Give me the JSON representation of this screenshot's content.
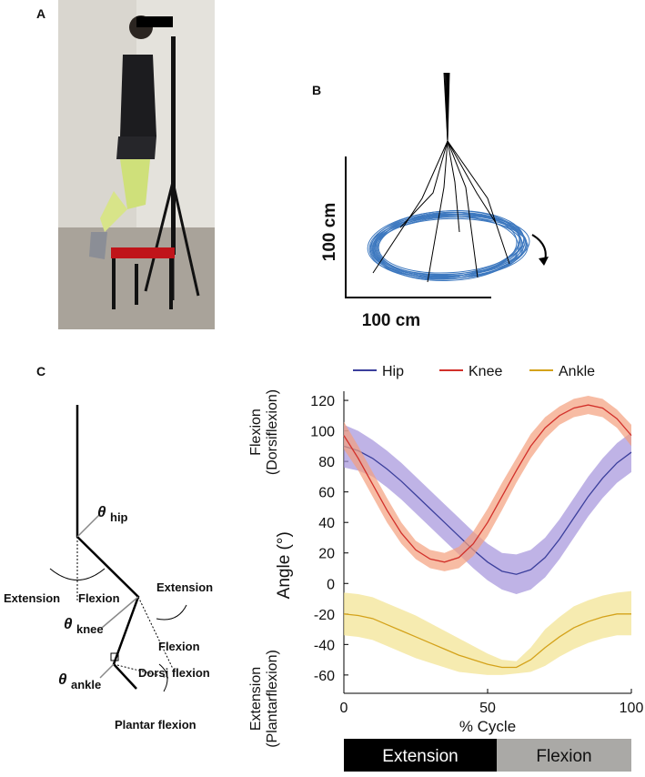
{
  "figure": {
    "panel_labels": [
      "A",
      "B",
      "C"
    ],
    "trajectory": {
      "x_scale": "100 cm",
      "y_scale": "100 cm"
    },
    "diagram": {
      "theta": "θ",
      "joints": [
        "hip",
        "knee",
        "ankle"
      ],
      "hip_labels": [
        "Extension",
        "Flexion"
      ],
      "knee_labels": [
        "Extension",
        "Flexion"
      ],
      "ankle_labels": [
        "Dorsi flexion",
        "Plantar flexion"
      ]
    },
    "phase_bar": [
      "Extension",
      "Flexion"
    ]
  },
  "chart_data": {
    "type": "line",
    "x_label": "% Cycle",
    "y_label": "Angle (°)",
    "y_label_top": [
      "Flexion",
      "(Dorsiflexion)"
    ],
    "y_label_bottom": [
      "Extension",
      "(Plantarflexion)"
    ],
    "x": [
      0,
      5,
      10,
      15,
      20,
      25,
      30,
      35,
      40,
      45,
      50,
      55,
      60,
      65,
      70,
      75,
      80,
      85,
      90,
      95,
      100
    ],
    "xlim": [
      0,
      100
    ],
    "xticks": [
      0,
      50,
      100
    ],
    "ylim": [
      -72,
      126
    ],
    "yticks": [
      -60,
      -40,
      -20,
      0,
      20,
      40,
      60,
      80,
      100,
      120
    ],
    "legend": "top",
    "series": [
      {
        "name": "Hip",
        "color": "#3b3f9c",
        "band_color": "#a493dc",
        "values": [
          90,
          87,
          82,
          75,
          67,
          58,
          49,
          40,
          31,
          22,
          14,
          8,
          6,
          9,
          17,
          29,
          43,
          57,
          69,
          79,
          86
        ],
        "lower": [
          76,
          74,
          70,
          63,
          55,
          46,
          37,
          28,
          19,
          10,
          2,
          -4,
          -7,
          -4,
          4,
          16,
          30,
          44,
          56,
          66,
          73
        ],
        "upper": [
          104,
          100,
          94,
          87,
          79,
          70,
          61,
          52,
          43,
          34,
          26,
          20,
          19,
          22,
          30,
          42,
          56,
          70,
          82,
          92,
          99
        ]
      },
      {
        "name": "Knee",
        "color": "#d2302a",
        "band_color": "#f3a07e",
        "values": [
          97,
          82,
          65,
          48,
          33,
          22,
          16,
          14,
          17,
          26,
          40,
          57,
          74,
          90,
          102,
          110,
          115,
          117,
          115,
          108,
          97
        ],
        "lower": [
          88,
          74,
          57,
          40,
          26,
          16,
          10,
          8,
          10,
          18,
          31,
          48,
          66,
          82,
          95,
          104,
          109,
          111,
          109,
          102,
          90
        ],
        "upper": [
          106,
          90,
          73,
          56,
          40,
          28,
          22,
          20,
          24,
          34,
          49,
          66,
          82,
          98,
          109,
          116,
          121,
          123,
          121,
          114,
          104
        ]
      },
      {
        "name": "Ankle",
        "color": "#d4a21a",
        "band_color": "#f2e28e",
        "values": [
          -20,
          -21,
          -23,
          -27,
          -31,
          -35,
          -39,
          -43,
          -47,
          -50,
          -53,
          -55,
          -55,
          -50,
          -42,
          -35,
          -29,
          -25,
          -22,
          -20,
          -20
        ],
        "lower": [
          -34,
          -35,
          -37,
          -41,
          -45,
          -49,
          -52,
          -55,
          -58,
          -59,
          -60,
          -60,
          -59,
          -58,
          -54,
          -48,
          -43,
          -39,
          -36,
          -34,
          -34
        ],
        "upper": [
          -6,
          -7,
          -9,
          -13,
          -17,
          -21,
          -26,
          -31,
          -36,
          -41,
          -46,
          -50,
          -51,
          -42,
          -30,
          -22,
          -15,
          -11,
          -8,
          -6,
          -5
        ]
      }
    ]
  }
}
